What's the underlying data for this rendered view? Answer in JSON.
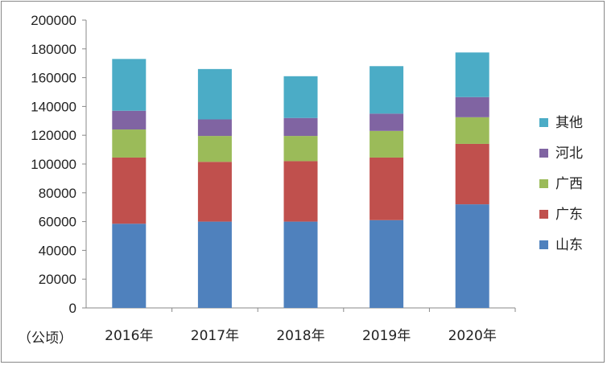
{
  "chart_data": {
    "type": "bar",
    "stacked": true,
    "categories": [
      "2016年",
      "2017年",
      "2018年",
      "2019年",
      "2020年"
    ],
    "series": [
      {
        "name": "山东",
        "color": "#4F81BD",
        "values": [
          58500,
          60000,
          60000,
          61000,
          72000
        ]
      },
      {
        "name": "广东",
        "color": "#C0504D",
        "values": [
          46000,
          41500,
          42000,
          43500,
          42000
        ]
      },
      {
        "name": "广西",
        "color": "#9BBB59",
        "values": [
          19500,
          18000,
          17500,
          18500,
          18500
        ]
      },
      {
        "name": "河北",
        "color": "#8064A2",
        "values": [
          13000,
          11500,
          12500,
          12000,
          14000
        ]
      },
      {
        "name": "其他",
        "color": "#4BACC6",
        "values": [
          36000,
          35000,
          29000,
          33000,
          31000
        ]
      }
    ],
    "ylim": [
      0,
      200000
    ],
    "yticks": [
      0,
      20000,
      40000,
      60000,
      80000,
      100000,
      120000,
      140000,
      160000,
      180000,
      200000
    ],
    "unit_label": "（公顷）",
    "legend_position": "right",
    "legend_order": [
      "其他",
      "河北",
      "广西",
      "广东",
      "山东"
    ],
    "grid": false
  }
}
